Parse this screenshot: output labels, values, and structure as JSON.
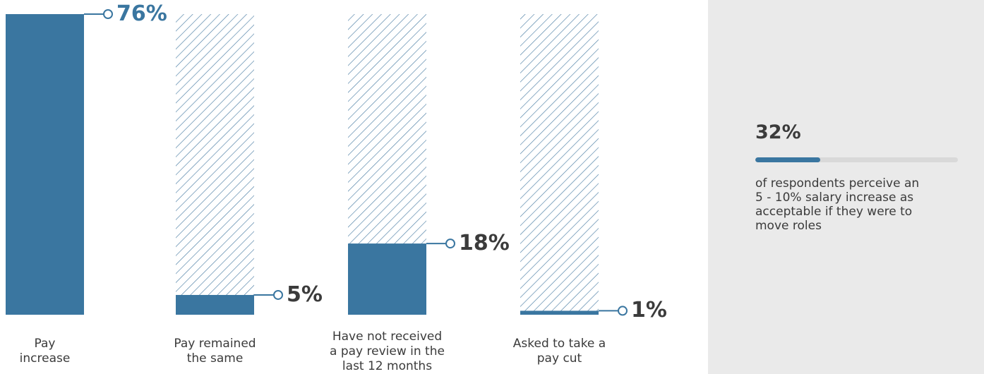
{
  "chart_data": {
    "type": "bar",
    "categories": [
      [
        "Pay",
        "increase"
      ],
      [
        "Pay remained",
        "the same"
      ],
      [
        "Have not received",
        "a pay review in the",
        "last 12 months"
      ],
      [
        "Asked to take a",
        "pay cut"
      ]
    ],
    "values": [
      76,
      5,
      18,
      1
    ],
    "value_labels": [
      "76%",
      "5%",
      "18%",
      "1%"
    ],
    "ylim": [
      0,
      76
    ],
    "grid": false,
    "legend": "none",
    "highlight_index": 0
  },
  "colors": {
    "bar_fill": "#3a76a0",
    "hatch": "#4d7fa5",
    "highlight_text": "#3a76a0",
    "text": "#3b3b3b",
    "panel_bg": "#eaeaea"
  },
  "stat": {
    "value": "32%",
    "fraction": 0.32,
    "caption_lines": [
      "of respondents perceive an",
      "5 - 10% salary increase as",
      "acceptable if they were to",
      "move roles"
    ]
  }
}
